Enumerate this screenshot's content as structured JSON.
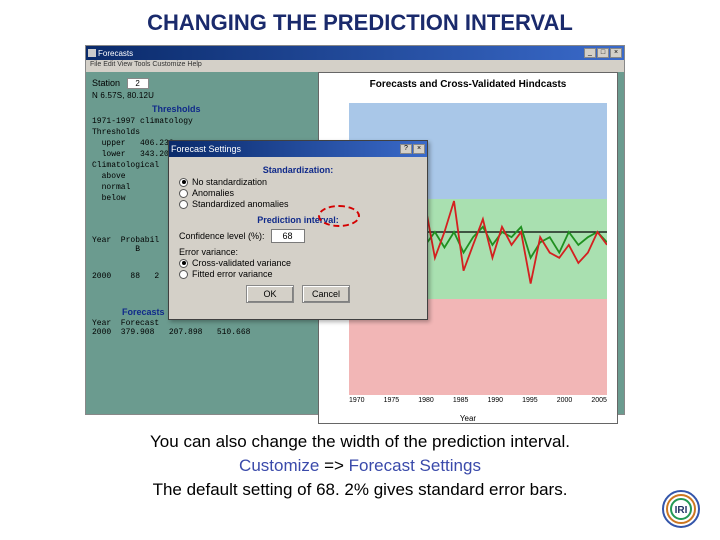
{
  "slide": {
    "title": "CHANGING THE PREDICTION INTERVAL",
    "caption_line1": "You can also change the width of the prediction interval.",
    "caption_kw1": "Customize",
    "caption_arrow": " => ",
    "caption_kw2": "Forecast Settings",
    "caption_line3": "The default setting of 68. 2% gives standard error bars."
  },
  "main_window": {
    "title": "Forecasts",
    "menubar": "File  Edit  View  Tools  Customize  Help",
    "station_label": "Station",
    "station_value": "2",
    "coord_text": "N   6.57S,  80.12U",
    "thresholds_label": "Thresholds",
    "thresh_block": "1971-1997 climatology\nThresholds\n  upper   406.233\n  lower   343.200\nClimatological  %\n  above\n  normal\n  below",
    "prob_header": "Year  Probabil\n         B",
    "prob_row": "2000    88   2",
    "forecasts_label": "Forecasts",
    "forecast_header": "Year  Forecast",
    "forecast_row": "2000  379.908   207.898   510.668"
  },
  "chart": {
    "title": "Forecasts and Cross-Validated Hindcasts",
    "x_ticks": [
      "1970",
      "1975",
      "1980",
      "1985",
      "1990",
      "1995",
      "2000",
      "2005"
    ],
    "x_label": "Year",
    "band_colors": {
      "top": "#a9c7e8",
      "mid": "#a9e0b0",
      "bot": "#f2b6b6"
    },
    "series": {
      "red": {
        "color": "#d42020",
        "points": [
          62,
          30,
          40,
          15,
          72,
          80,
          35,
          70,
          40,
          60,
          50,
          38,
          65,
          55,
          45,
          60,
          48,
          55,
          50,
          70,
          52,
          58,
          60,
          55,
          62,
          58,
          50,
          55
        ]
      },
      "green": {
        "color": "#209020",
        "points": [
          55,
          48,
          52,
          45,
          60,
          50,
          54,
          48,
          55,
          50,
          56,
          50,
          58,
          52,
          48,
          55,
          50,
          52,
          48,
          60,
          54,
          52,
          58,
          50,
          55,
          52,
          50,
          54
        ]
      },
      "black": {
        "color": "#000000",
        "points": [
          50,
          50,
          50,
          50,
          50,
          50,
          50,
          50,
          50,
          50,
          50,
          50,
          50,
          50,
          50,
          50,
          50,
          50,
          50,
          50,
          50,
          50,
          50,
          50,
          50,
          50,
          50,
          50
        ]
      }
    },
    "y_range": [
      100,
      700
    ]
  },
  "dialog": {
    "title": "Forecast Settings",
    "standardization_label": "Standardization:",
    "std_options": [
      {
        "label": "No standardization",
        "checked": true
      },
      {
        "label": "Anomalies",
        "checked": false
      },
      {
        "label": "Standardized anomalies",
        "checked": false
      }
    ],
    "prediction_interval_label": "Prediction interval:",
    "conf_label": "Confidence level (%):",
    "conf_value": "68",
    "error_variance_label": "Error variance:",
    "ev_options": [
      {
        "label": "Cross-validated variance",
        "checked": true
      },
      {
        "label": "Fitted error variance",
        "checked": false
      }
    ],
    "ok_label": "OK",
    "cancel_label": "Cancel"
  },
  "colors": {
    "slide_title": "#1a2a6c",
    "app_bg": "#6b9b8f",
    "dialog_bg": "#d4d0c8",
    "highlight": "#d40000"
  }
}
